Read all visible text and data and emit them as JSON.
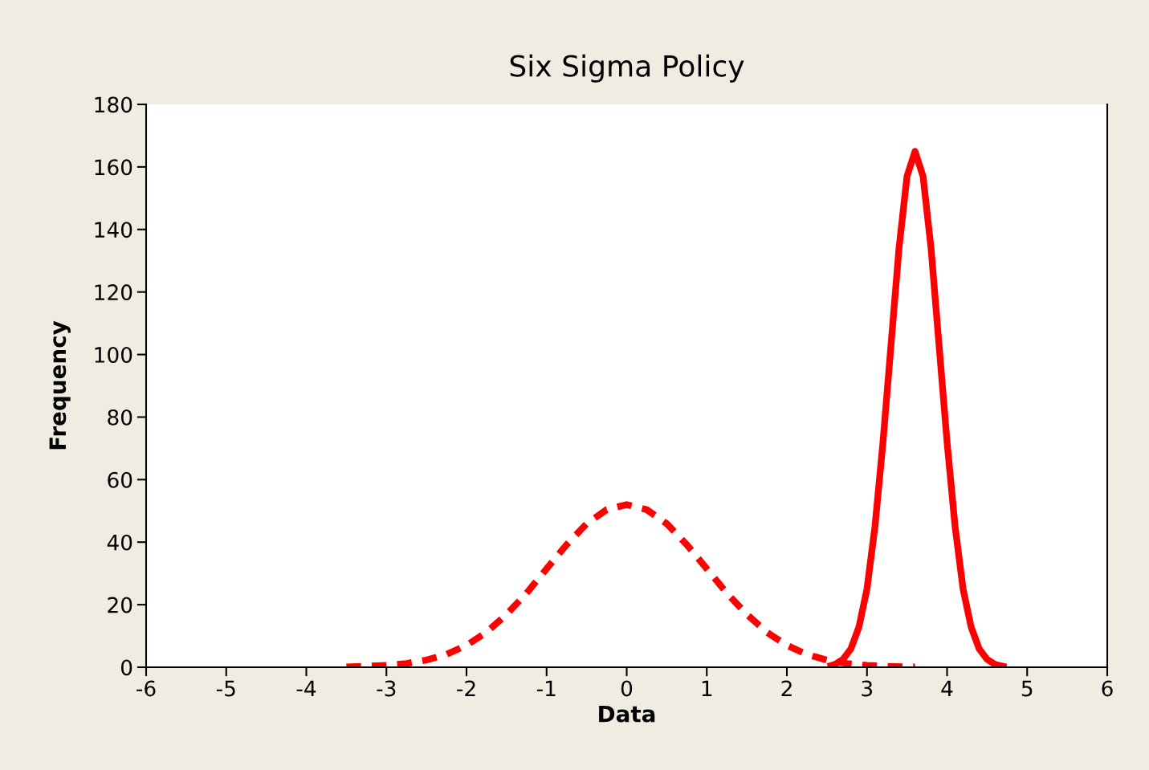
{
  "chart_data": {
    "type": "line",
    "title": "Six Sigma Policy",
    "xlabel": "Data",
    "ylabel": "Frequency",
    "xlim": [
      -6,
      6
    ],
    "xticks": [
      -6,
      -5,
      -4,
      -3,
      -2,
      -1,
      0,
      1,
      2,
      3,
      4,
      5,
      6
    ],
    "ylim": [
      0,
      180
    ],
    "yticks": [
      0,
      20,
      40,
      60,
      80,
      100,
      120,
      140,
      160,
      180
    ],
    "grid": false,
    "legend": false,
    "marker": "none",
    "series": [
      {
        "color": "#ff0000",
        "line_style": "dashed",
        "x": [
          -3.5,
          -3.25,
          -3,
          -2.75,
          -2.5,
          -2.25,
          -2,
          -1.75,
          -1.5,
          -1.25,
          -1,
          -0.75,
          -0.5,
          -0.25,
          0,
          0.25,
          0.5,
          0.75,
          1,
          1.25,
          1.5,
          1.75,
          2,
          2.25,
          2.5,
          2.75,
          3,
          3.25,
          3.5,
          3.6
        ],
        "values": [
          0.1,
          0.3,
          0.6,
          1.2,
          2.3,
          4.1,
          7,
          11.2,
          16.9,
          23.7,
          31.5,
          39.2,
          45.9,
          50.4,
          52,
          50.4,
          45.9,
          39.2,
          31.5,
          23.7,
          16.9,
          11.2,
          7,
          4.1,
          2.3,
          1.2,
          0.6,
          0.3,
          0.1,
          0.1
        ]
      },
      {
        "color": "#ff0000",
        "line_style": "solid",
        "x": [
          2.55,
          2.6,
          2.7,
          2.8,
          2.9,
          3,
          3.1,
          3.2,
          3.3,
          3.4,
          3.5,
          3.6,
          3.7,
          3.8,
          3.9,
          4,
          4.1,
          4.2,
          4.3,
          4.4,
          4.5,
          4.6,
          4.7
        ],
        "values": [
          0.5,
          0.9,
          2.5,
          5.9,
          12.9,
          25,
          45,
          72,
          103,
          134,
          157,
          165,
          157,
          134,
          103,
          72,
          45,
          25,
          12.9,
          5.9,
          2.5,
          0.9,
          0.3
        ]
      }
    ]
  }
}
